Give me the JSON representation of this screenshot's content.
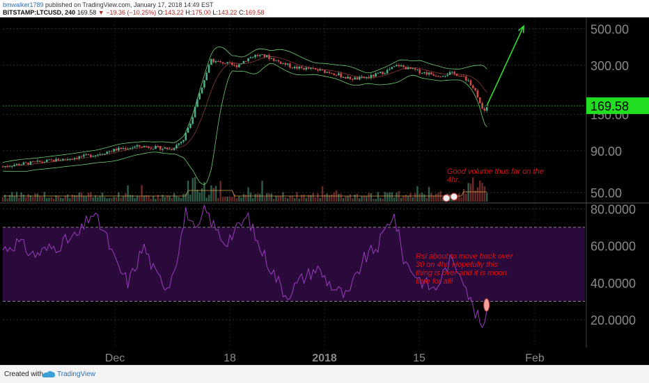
{
  "header": {
    "username": "bmwalker1789",
    "published_text": "published on TradingView.com, January 17, 2018 14:49 EST",
    "symbol": "BITSTAMP:LTCUSD, 240",
    "last": "169.58",
    "arrow": "▼",
    "change": "−19.36 (−10.25%)",
    "o_label": "O:",
    "o_value": "143.22",
    "h_label": "H:",
    "h_value": "175.00",
    "l_label": "L:",
    "l_value": "143.22",
    "c_label": "C:",
    "c_value": "169.58"
  },
  "price_axis": {
    "ticks": [
      {
        "label": "500.00",
        "value": 500
      },
      {
        "label": "300.00",
        "value": 300
      },
      {
        "label": "150.00",
        "value": 150
      },
      {
        "label": "90.00",
        "value": 90
      },
      {
        "label": "50.00",
        "value": 50
      }
    ],
    "current_price_label": "169.58",
    "current_price_value": 169.58,
    "scale": "log",
    "range": [
      44,
      560
    ]
  },
  "rsi_axis": {
    "ticks": [
      {
        "label": "80.0000",
        "value": 80
      },
      {
        "label": "60.0000",
        "value": 60
      },
      {
        "label": "40.0000",
        "value": 40
      },
      {
        "label": "20.0000",
        "value": 20
      }
    ],
    "band": [
      30,
      70
    ],
    "range": [
      5,
      82
    ]
  },
  "time_axis": {
    "ticks": [
      {
        "label": "Dec",
        "bold": false
      },
      {
        "label": "18",
        "bold": false
      },
      {
        "label": "2018",
        "bold": true
      },
      {
        "label": "15",
        "bold": false
      },
      {
        "label": "Feb",
        "bold": false
      }
    ]
  },
  "annotations": {
    "volume_note": [
      "Good volume thus far on the",
      "4hr."
    ],
    "rsi_note": [
      "Rsi about to move back over",
      "30 on 4hr.  Hopefully this",
      "thing is over and it is moon",
      "time for all!"
    ]
  },
  "chart_data": {
    "type": "line",
    "panes": [
      "price-candlestick",
      "volume",
      "rsi"
    ],
    "price_path_close": [
      {
        "t": 0,
        "v": 72
      },
      {
        "t": 8,
        "v": 74
      },
      {
        "t": 20,
        "v": 76
      },
      {
        "t": 40,
        "v": 80
      },
      {
        "t": 60,
        "v": 85
      },
      {
        "t": 75,
        "v": 92
      },
      {
        "t": 90,
        "v": 96
      },
      {
        "t": 100,
        "v": 94
      },
      {
        "t": 110,
        "v": 92
      },
      {
        "t": 118,
        "v": 105
      },
      {
        "t": 124,
        "v": 145
      },
      {
        "t": 130,
        "v": 220
      },
      {
        "t": 136,
        "v": 320
      },
      {
        "t": 145,
        "v": 310
      },
      {
        "t": 152,
        "v": 295
      },
      {
        "t": 160,
        "v": 330
      },
      {
        "t": 165,
        "v": 345
      },
      {
        "t": 172,
        "v": 340
      },
      {
        "t": 180,
        "v": 315
      },
      {
        "t": 190,
        "v": 290
      },
      {
        "t": 200,
        "v": 285
      },
      {
        "t": 215,
        "v": 270
      },
      {
        "t": 225,
        "v": 250
      },
      {
        "t": 232,
        "v": 248
      },
      {
        "t": 240,
        "v": 255
      },
      {
        "t": 250,
        "v": 275
      },
      {
        "t": 258,
        "v": 300
      },
      {
        "t": 265,
        "v": 285
      },
      {
        "t": 275,
        "v": 270
      },
      {
        "t": 285,
        "v": 260
      },
      {
        "t": 292,
        "v": 268
      },
      {
        "t": 298,
        "v": 262
      },
      {
        "t": 305,
        "v": 235
      },
      {
        "t": 310,
        "v": 195
      },
      {
        "t": 314,
        "v": 150
      },
      {
        "t": 316,
        "v": 169.58
      }
    ],
    "forecast_arrow": {
      "from": {
        "t": 316,
        "v": 170
      },
      "to": {
        "t": 340,
        "v": 520
      }
    },
    "rsi": [
      {
        "t": 0,
        "v": 58
      },
      {
        "t": 10,
        "v": 62
      },
      {
        "t": 20,
        "v": 55
      },
      {
        "t": 35,
        "v": 60
      },
      {
        "t": 50,
        "v": 66
      },
      {
        "t": 58,
        "v": 78
      },
      {
        "t": 66,
        "v": 68
      },
      {
        "t": 74,
        "v": 50
      },
      {
        "t": 82,
        "v": 40
      },
      {
        "t": 92,
        "v": 60
      },
      {
        "t": 100,
        "v": 44
      },
      {
        "t": 108,
        "v": 38
      },
      {
        "t": 114,
        "v": 55
      },
      {
        "t": 120,
        "v": 80
      },
      {
        "t": 126,
        "v": 65
      },
      {
        "t": 132,
        "v": 80
      },
      {
        "t": 138,
        "v": 70
      },
      {
        "t": 145,
        "v": 62
      },
      {
        "t": 152,
        "v": 68
      },
      {
        "t": 160,
        "v": 76
      },
      {
        "t": 166,
        "v": 62
      },
      {
        "t": 175,
        "v": 48
      },
      {
        "t": 185,
        "v": 33
      },
      {
        "t": 195,
        "v": 42
      },
      {
        "t": 205,
        "v": 48
      },
      {
        "t": 215,
        "v": 38
      },
      {
        "t": 225,
        "v": 32
      },
      {
        "t": 235,
        "v": 52
      },
      {
        "t": 245,
        "v": 60
      },
      {
        "t": 255,
        "v": 78
      },
      {
        "t": 262,
        "v": 52
      },
      {
        "t": 272,
        "v": 42
      },
      {
        "t": 282,
        "v": 36
      },
      {
        "t": 292,
        "v": 52
      },
      {
        "t": 300,
        "v": 45
      },
      {
        "t": 306,
        "v": 28
      },
      {
        "t": 312,
        "v": 18
      },
      {
        "t": 315,
        "v": 14
      },
      {
        "t": 316,
        "v": 28
      }
    ],
    "xlim": [
      0,
      380
    ]
  },
  "colors": {
    "background": "#000000",
    "grid": "#3a3a3a",
    "up_candle": "#4caf8a",
    "down_candle": "#d24b4b",
    "bollinger": "#6fd16f",
    "rsi_line": "#9b3bbf",
    "rsi_band": "#2a0a3a",
    "arrow": "#33dd33",
    "price_box": "#22dd22",
    "annotation": "#e01010"
  },
  "footer": {
    "created_with": "Created with",
    "brand": "TradingView"
  }
}
